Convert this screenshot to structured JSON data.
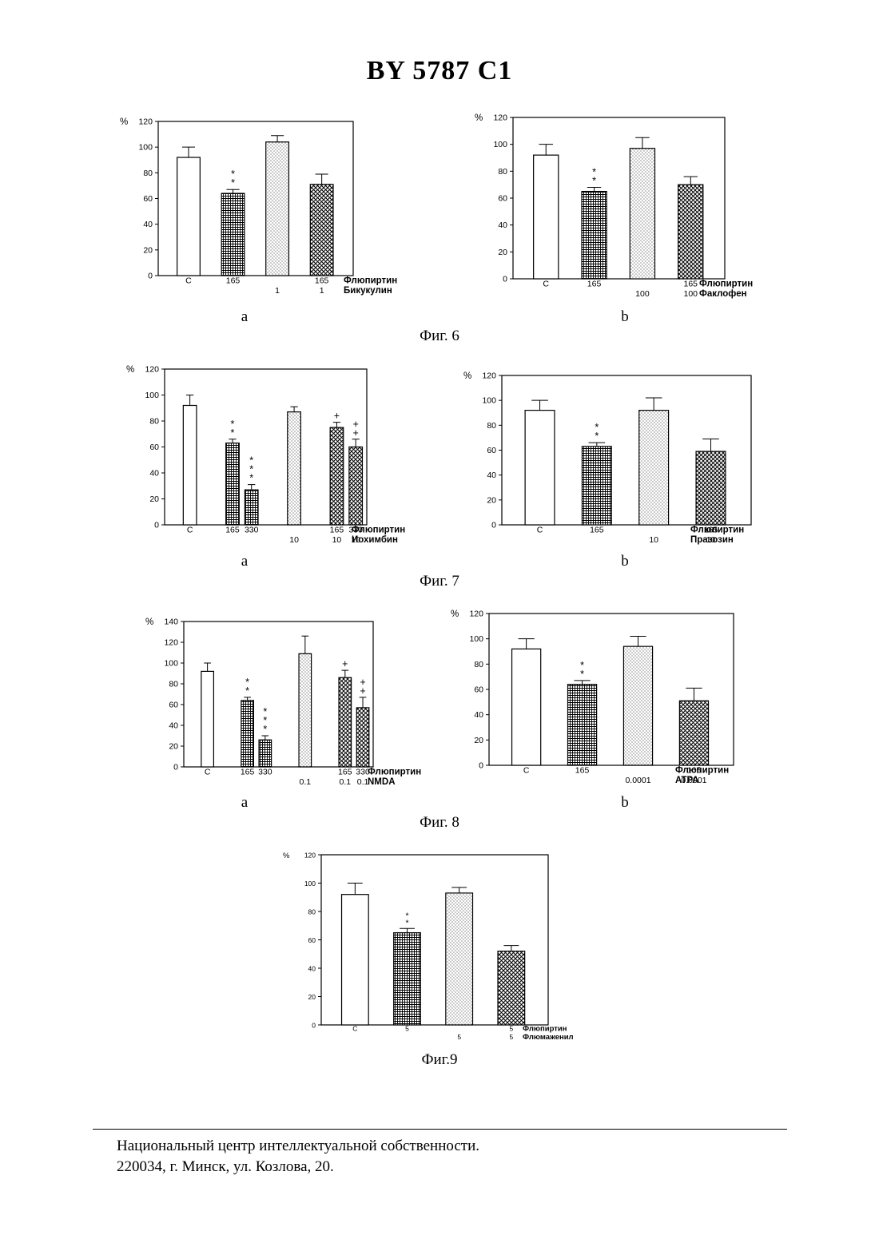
{
  "header": {
    "title": "BY 5787 C1"
  },
  "captions": [
    "Фиг. 6",
    "Фиг. 7",
    "Фиг. 8",
    "Фиг.9"
  ],
  "footer": {
    "line1": "Национальный центр интеллектуальной собственности.",
    "line2": "220034, г. Минск, ул. Козлова, 20."
  },
  "colors": {
    "ink": "#000000",
    "paper": "#ffffff"
  },
  "chart_data": [
    {
      "id": "fig6a",
      "figure": "Фиг. 6",
      "panel": "a",
      "type": "bar",
      "ylabel": "%",
      "ylim": [
        0,
        120
      ],
      "yticks": [
        0,
        20,
        40,
        60,
        80,
        100,
        120
      ],
      "row1_label": "Флюпиртин",
      "row2_label": "Бикукулин",
      "bars": [
        {
          "x": 1.0,
          "value": 92,
          "err": 8,
          "pattern": "open",
          "stars": "",
          "row1": "C",
          "row2": ""
        },
        {
          "x": 2.2,
          "value": 64,
          "err": 3,
          "pattern": "grid",
          "stars": "**",
          "row1": "165",
          "row2": ""
        },
        {
          "x": 3.4,
          "value": 104,
          "err": 5,
          "pattern": "dots",
          "stars": "",
          "row1": "",
          "row2": "1"
        },
        {
          "x": 4.6,
          "value": 71,
          "err": 8,
          "pattern": "cross",
          "stars": "",
          "row1": "165",
          "row2": "1"
        }
      ]
    },
    {
      "id": "fig6b",
      "figure": "Фиг. 6",
      "panel": "b",
      "type": "bar",
      "ylabel": "%",
      "ylim": [
        0,
        120
      ],
      "yticks": [
        0,
        20,
        40,
        60,
        80,
        100,
        120
      ],
      "row1_label": "Флюпиртин",
      "row2_label": "Факлофен",
      "bars": [
        {
          "x": 1.0,
          "value": 92,
          "err": 8,
          "pattern": "open",
          "stars": "",
          "row1": "C",
          "row2": ""
        },
        {
          "x": 2.2,
          "value": 65,
          "err": 3,
          "pattern": "grid",
          "stars": "**",
          "row1": "165",
          "row2": ""
        },
        {
          "x": 3.4,
          "value": 97,
          "err": 8,
          "pattern": "dots",
          "stars": "",
          "row1": "",
          "row2": "100"
        },
        {
          "x": 4.6,
          "value": 70,
          "err": 6,
          "pattern": "cross",
          "stars": "",
          "row1": "165",
          "row2": "100"
        }
      ]
    },
    {
      "id": "fig7a",
      "figure": "Фиг. 7",
      "panel": "a",
      "type": "bar",
      "ylabel": "%",
      "ylim": [
        0,
        120
      ],
      "yticks": [
        0,
        20,
        40,
        60,
        80,
        100,
        120
      ],
      "row1_label": "Флюпиртин",
      "row2_label": "Иохимбин",
      "bars": [
        {
          "x": 1.0,
          "value": 92,
          "err": 8,
          "pattern": "open",
          "stars": "",
          "row1": "C",
          "row2": ""
        },
        {
          "x": 2.35,
          "value": 63,
          "err": 3,
          "pattern": "grid",
          "stars": "**",
          "row1": "165",
          "row2": ""
        },
        {
          "x": 2.95,
          "value": 27,
          "err": 4,
          "pattern": "grid",
          "stars": "***",
          "row1": "330",
          "row2": ""
        },
        {
          "x": 4.3,
          "value": 87,
          "err": 4,
          "pattern": "dots",
          "stars": "",
          "row1": "",
          "row2": "10"
        },
        {
          "x": 5.65,
          "value": 75,
          "err": 4,
          "pattern": "cross",
          "stars": "+",
          "row1": "165",
          "row2": "10"
        },
        {
          "x": 6.25,
          "value": 60,
          "err": 6,
          "pattern": "cross",
          "stars": "++",
          "row1": "330",
          "row2": "10"
        }
      ]
    },
    {
      "id": "fig7b",
      "figure": "Фиг. 7",
      "panel": "b",
      "type": "bar",
      "ylabel": "%",
      "ylim": [
        0,
        120
      ],
      "yticks": [
        0,
        20,
        40,
        60,
        80,
        100,
        120
      ],
      "row1_label": "Флюпиртин",
      "row2_label": "Празозин",
      "bars": [
        {
          "x": 1.0,
          "value": 92,
          "err": 8,
          "pattern": "open",
          "stars": "",
          "row1": "C",
          "row2": ""
        },
        {
          "x": 2.2,
          "value": 63,
          "err": 3,
          "pattern": "grid",
          "stars": "**",
          "row1": "165",
          "row2": ""
        },
        {
          "x": 3.4,
          "value": 92,
          "err": 10,
          "pattern": "dots",
          "stars": "",
          "row1": "",
          "row2": "10"
        },
        {
          "x": 4.6,
          "value": 59,
          "err": 10,
          "pattern": "cross",
          "stars": "",
          "row1": "165",
          "row2": "10"
        }
      ]
    },
    {
      "id": "fig8a",
      "figure": "Фиг. 8",
      "panel": "a",
      "type": "bar",
      "ylabel": "%",
      "ylim": [
        0,
        140
      ],
      "yticks": [
        0,
        20,
        40,
        60,
        80,
        100,
        120,
        140
      ],
      "row1_label": "Флюпиртин",
      "row2_label": "NMDA",
      "bars": [
        {
          "x": 1.0,
          "value": 92,
          "err": 8,
          "pattern": "open",
          "stars": "",
          "row1": "C",
          "row2": ""
        },
        {
          "x": 2.35,
          "value": 64,
          "err": 3,
          "pattern": "grid",
          "stars": "**",
          "row1": "165",
          "row2": ""
        },
        {
          "x": 2.95,
          "value": 26,
          "err": 4,
          "pattern": "grid",
          "stars": "***",
          "row1": "330",
          "row2": ""
        },
        {
          "x": 4.3,
          "value": 109,
          "err": 17,
          "pattern": "dots",
          "stars": "",
          "row1": "",
          "row2": "0.1"
        },
        {
          "x": 5.65,
          "value": 86,
          "err": 7,
          "pattern": "cross",
          "stars": "+",
          "row1": "165",
          "row2": "0.1"
        },
        {
          "x": 6.25,
          "value": 57,
          "err": 10,
          "pattern": "cross",
          "stars": "++",
          "row1": "330",
          "row2": "0.1"
        }
      ]
    },
    {
      "id": "fig8b",
      "figure": "Фиг. 8",
      "panel": "b",
      "type": "bar",
      "ylabel": "%",
      "ylim": [
        0,
        120
      ],
      "yticks": [
        0,
        20,
        40,
        60,
        80,
        100,
        120
      ],
      "row1_label": "Флюпиртин",
      "row2_label": "ATPA",
      "bars": [
        {
          "x": 1.0,
          "value": 92,
          "err": 8,
          "pattern": "open",
          "stars": "",
          "row1": "C",
          "row2": ""
        },
        {
          "x": 2.2,
          "value": 64,
          "err": 3,
          "pattern": "grid",
          "stars": "**",
          "row1": "165",
          "row2": ""
        },
        {
          "x": 3.4,
          "value": 94,
          "err": 8,
          "pattern": "dots",
          "stars": "",
          "row1": "",
          "row2": "0.0001"
        },
        {
          "x": 4.6,
          "value": 51,
          "err": 10,
          "pattern": "cross",
          "stars": "",
          "row1": "165",
          "row2": "0.0001"
        }
      ]
    },
    {
      "id": "fig9",
      "figure": "Фиг.9",
      "panel": "",
      "type": "bar",
      "ylabel": "%",
      "ylim": [
        0,
        120
      ],
      "yticks": [
        0,
        20,
        40,
        60,
        80,
        100,
        120
      ],
      "row1_label": "Флюпиртин",
      "row2_label": "Флюмаженил",
      "bars": [
        {
          "x": 1.0,
          "value": 92,
          "err": 8,
          "pattern": "open",
          "stars": "",
          "row1": "C",
          "row2": ""
        },
        {
          "x": 2.2,
          "value": 65,
          "err": 3,
          "pattern": "grid",
          "stars": "**",
          "row1": "5",
          "row2": ""
        },
        {
          "x": 3.4,
          "value": 93,
          "err": 4,
          "pattern": "dots",
          "stars": "",
          "row1": "",
          "row2": "5"
        },
        {
          "x": 4.6,
          "value": 52,
          "err": 4,
          "pattern": "cross",
          "stars": "",
          "row1": "5",
          "row2": "5"
        }
      ]
    }
  ]
}
